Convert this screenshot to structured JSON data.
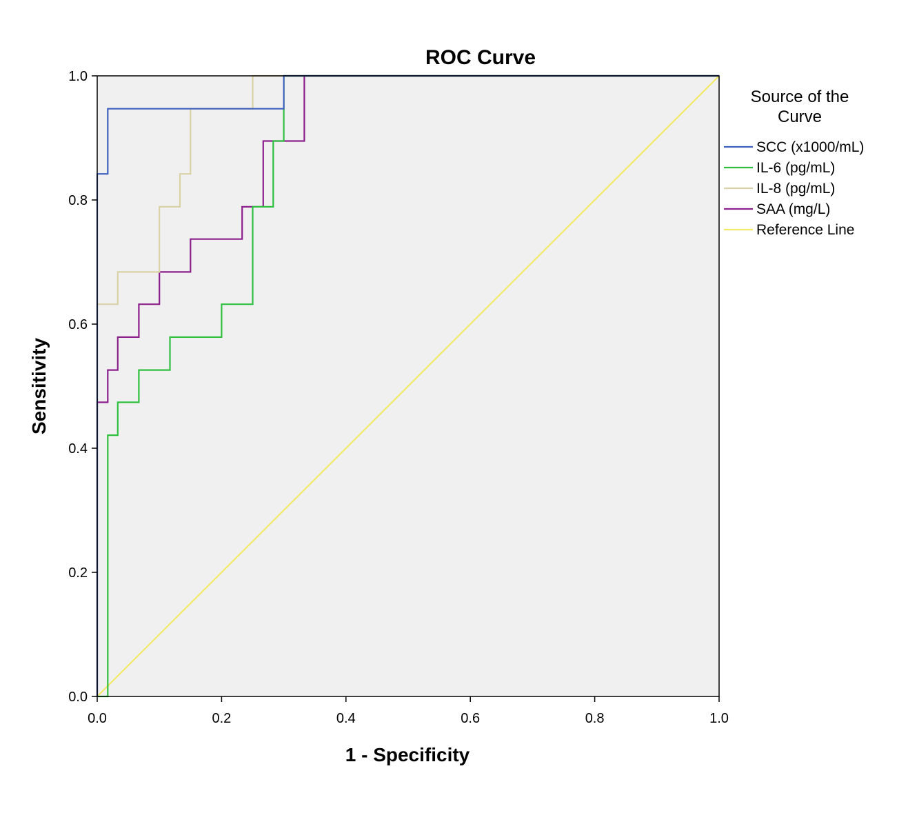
{
  "chart_data": {
    "type": "line",
    "title": "ROC Curve",
    "xlabel": "1 - Specificity",
    "ylabel": "Sensitivity",
    "xlim": [
      0,
      1
    ],
    "ylim": [
      0,
      1
    ],
    "x_ticks": [
      "0.0",
      "0.2",
      "0.4",
      "0.6",
      "0.8",
      "1.0"
    ],
    "y_ticks": [
      "0.0",
      "0.2",
      "0.4",
      "0.6",
      "0.8",
      "1.0"
    ],
    "grid": false,
    "plot_background": "#f0f0f0",
    "legend": {
      "title": [
        "Source of the",
        "Curve"
      ],
      "placement": "right"
    },
    "series": [
      {
        "name": "SCC (x1000/mL)",
        "color": "#3f5fbf",
        "points": [
          [
            0,
            0
          ],
          [
            0,
            0.842
          ],
          [
            0.017,
            0.842
          ],
          [
            0.017,
            0.947
          ],
          [
            0.3,
            0.947
          ],
          [
            0.3,
            1.0
          ],
          [
            1.0,
            1.0
          ]
        ]
      },
      {
        "name": "IL-6 (pg/mL)",
        "color": "#2fbf3f",
        "points": [
          [
            0,
            0
          ],
          [
            0.017,
            0
          ],
          [
            0.017,
            0.421
          ],
          [
            0.033,
            0.421
          ],
          [
            0.033,
            0.474
          ],
          [
            0.067,
            0.474
          ],
          [
            0.067,
            0.526
          ],
          [
            0.117,
            0.526
          ],
          [
            0.117,
            0.579
          ],
          [
            0.2,
            0.579
          ],
          [
            0.2,
            0.632
          ],
          [
            0.25,
            0.632
          ],
          [
            0.25,
            0.789
          ],
          [
            0.283,
            0.789
          ],
          [
            0.283,
            0.895
          ],
          [
            0.3,
            0.895
          ],
          [
            0.3,
            1.0
          ],
          [
            1.0,
            1.0
          ]
        ]
      },
      {
        "name": "IL-8 (pg/mL)",
        "color": "#d9d2a6",
        "points": [
          [
            0,
            0
          ],
          [
            0,
            0.632
          ],
          [
            0.033,
            0.632
          ],
          [
            0.033,
            0.684
          ],
          [
            0.1,
            0.684
          ],
          [
            0.1,
            0.789
          ],
          [
            0.133,
            0.789
          ],
          [
            0.133,
            0.842
          ],
          [
            0.15,
            0.842
          ],
          [
            0.15,
            0.947
          ],
          [
            0.25,
            0.947
          ],
          [
            0.25,
            1.0
          ],
          [
            1.0,
            1.0
          ]
        ]
      },
      {
        "name": "SAA (mg/L)",
        "color": "#8b1f8b",
        "points": [
          [
            0,
            0
          ],
          [
            0,
            0.474
          ],
          [
            0.017,
            0.474
          ],
          [
            0.017,
            0.526
          ],
          [
            0.033,
            0.526
          ],
          [
            0.033,
            0.579
          ],
          [
            0.067,
            0.579
          ],
          [
            0.067,
            0.632
          ],
          [
            0.1,
            0.632
          ],
          [
            0.1,
            0.684
          ],
          [
            0.15,
            0.684
          ],
          [
            0.15,
            0.737
          ],
          [
            0.233,
            0.737
          ],
          [
            0.233,
            0.789
          ],
          [
            0.267,
            0.789
          ],
          [
            0.267,
            0.895
          ],
          [
            0.333,
            0.895
          ],
          [
            0.333,
            1.0
          ],
          [
            1.0,
            1.0
          ]
        ]
      },
      {
        "name": "Reference Line",
        "color": "#f2ea66",
        "points": [
          [
            0,
            0
          ],
          [
            1,
            1
          ]
        ]
      }
    ]
  }
}
